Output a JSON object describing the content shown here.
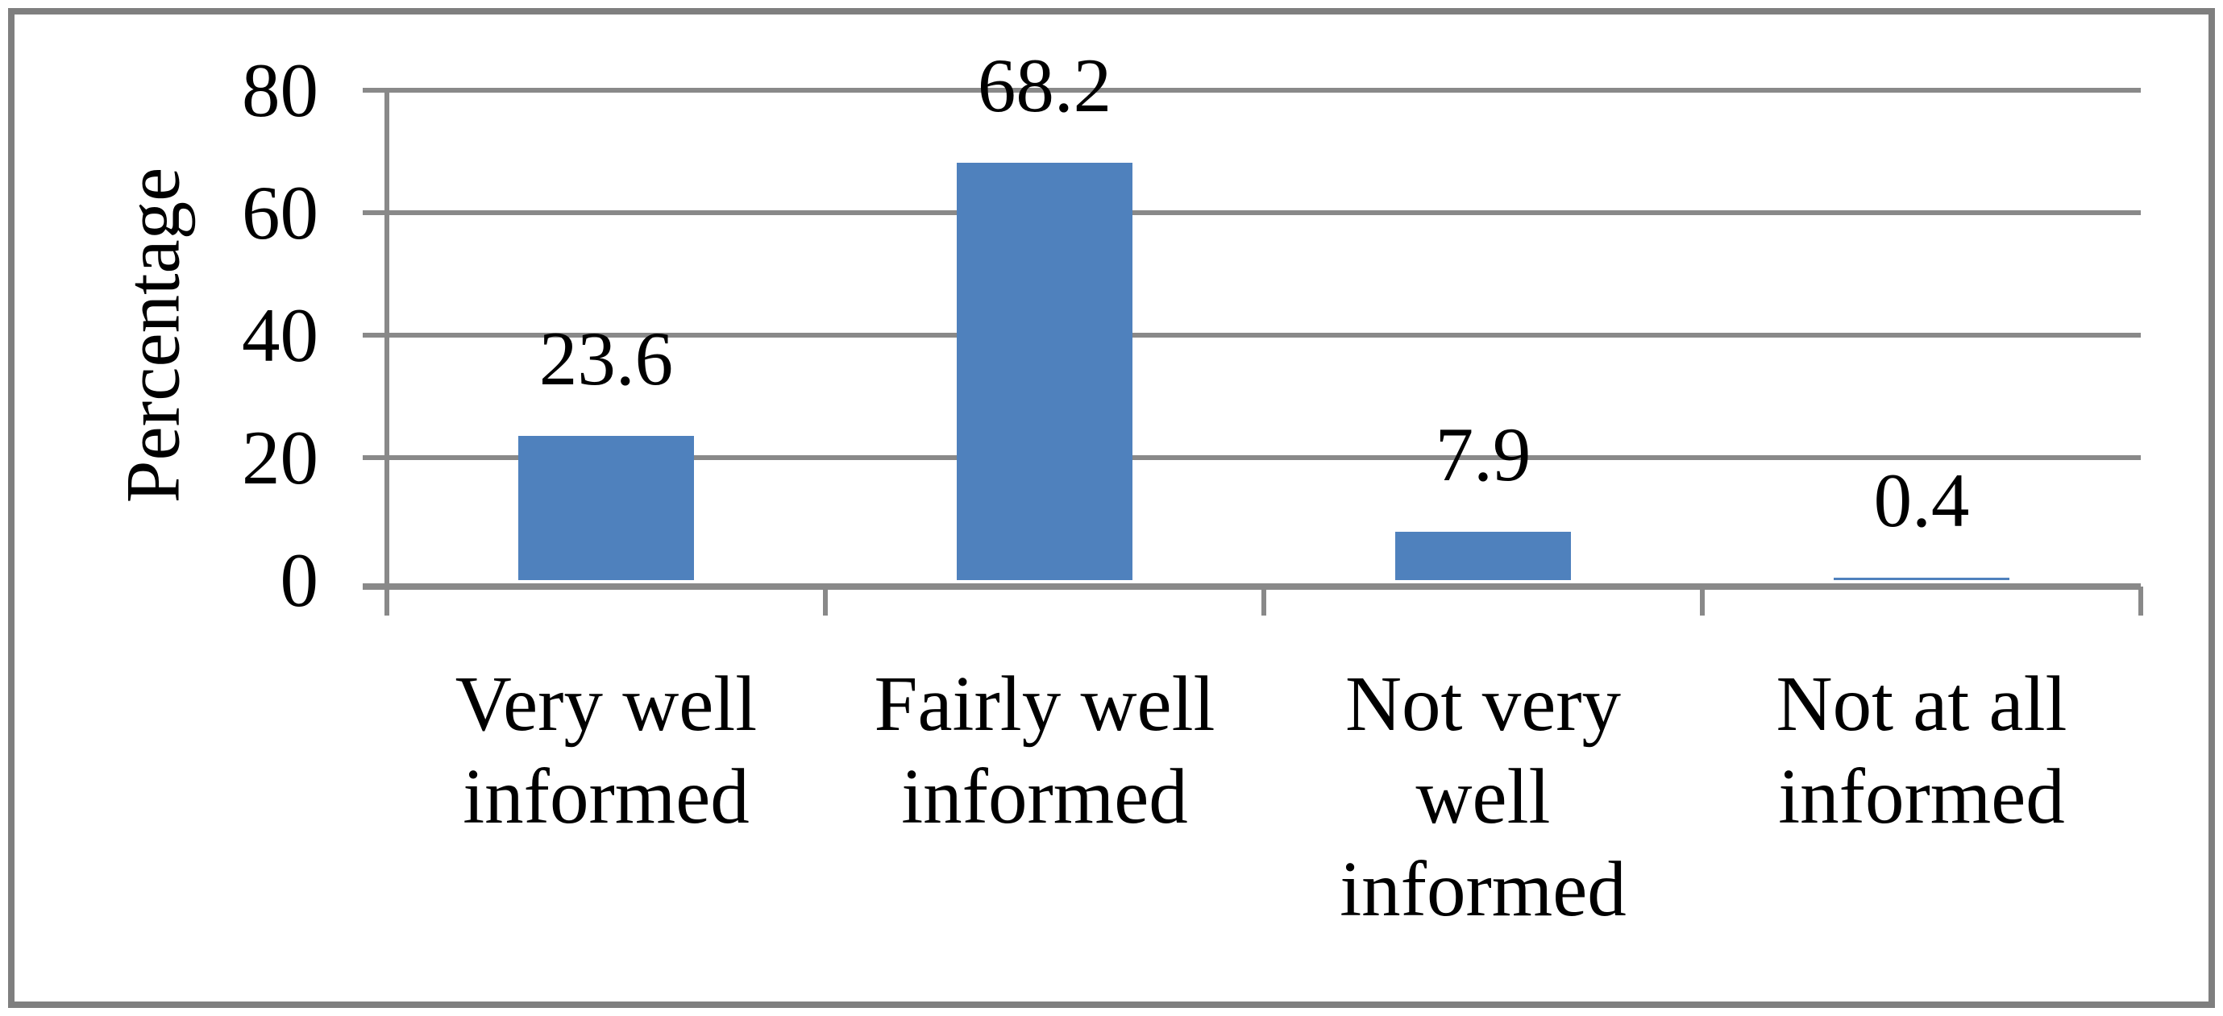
{
  "chart_data": {
    "type": "bar",
    "title": "",
    "xlabel": "",
    "ylabel": "Percentage",
    "categories": [
      "Very well\ninformed",
      "Fairly well\ninformed",
      "Not very\nwell\ninformed",
      "Not at all\ninformed"
    ],
    "values": [
      23.6,
      68.2,
      7.9,
      0.4
    ],
    "value_labels": [
      "23.6",
      "68.2",
      "7.9",
      "0.4"
    ],
    "ylim": [
      0,
      80
    ],
    "yticks": [
      0,
      20,
      40,
      60,
      80
    ],
    "ytick_labels": [
      "0",
      "20",
      "40",
      "60",
      "80"
    ],
    "grid": "horizontal",
    "legend": "none",
    "colors": {
      "bar": "#4F81BD",
      "gridline": "#898989",
      "axis": "#898989",
      "figure_border": "#7F7F7F",
      "text": "#000000",
      "background": "#FFFFFF"
    }
  }
}
